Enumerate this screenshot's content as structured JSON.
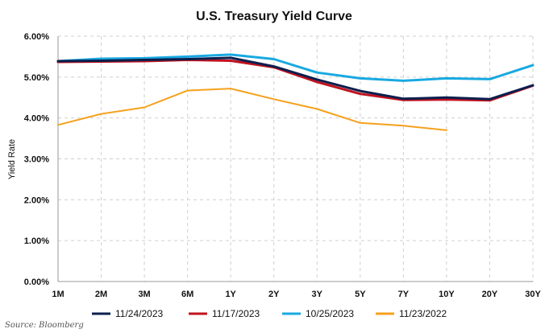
{
  "chart_data": {
    "type": "line",
    "title": "U.S. Treasury Yield Curve",
    "xlabel": "",
    "ylabel": "Yield Rate",
    "categories": [
      "1M",
      "2M",
      "3M",
      "6M",
      "1Y",
      "2Y",
      "3Y",
      "5Y",
      "7Y",
      "10Y",
      "20Y",
      "30Y"
    ],
    "y_ticks": [
      "0.00%",
      "1.00%",
      "2.00%",
      "3.00%",
      "4.00%",
      "5.00%",
      "6.00%"
    ],
    "ylim": [
      0,
      6
    ],
    "grid": true,
    "legend_position": "bottom",
    "source": "Source: Bloomberg",
    "series": [
      {
        "name": "11/24/2023",
        "color": "#0b1f4d",
        "values": [
          5.39,
          5.4,
          5.42,
          5.44,
          5.47,
          5.26,
          4.94,
          4.66,
          4.47,
          4.5,
          4.46,
          4.8
        ]
      },
      {
        "name": "11/17/2023",
        "color": "#c1121f",
        "values": [
          5.37,
          5.38,
          5.39,
          5.42,
          5.4,
          5.24,
          4.88,
          4.59,
          4.44,
          4.45,
          4.43,
          4.79
        ]
      },
      {
        "name": "10/25/2023",
        "color": "#18a9e1",
        "values": [
          5.39,
          5.45,
          5.46,
          5.5,
          5.55,
          5.44,
          5.11,
          4.97,
          4.91,
          4.97,
          4.95,
          5.29
        ]
      },
      {
        "name": "11/23/2022",
        "color": "#f5a11c",
        "values": [
          3.83,
          4.1,
          4.26,
          4.67,
          4.72,
          4.46,
          4.22,
          3.88,
          3.81,
          3.7,
          null,
          null
        ]
      }
    ]
  }
}
